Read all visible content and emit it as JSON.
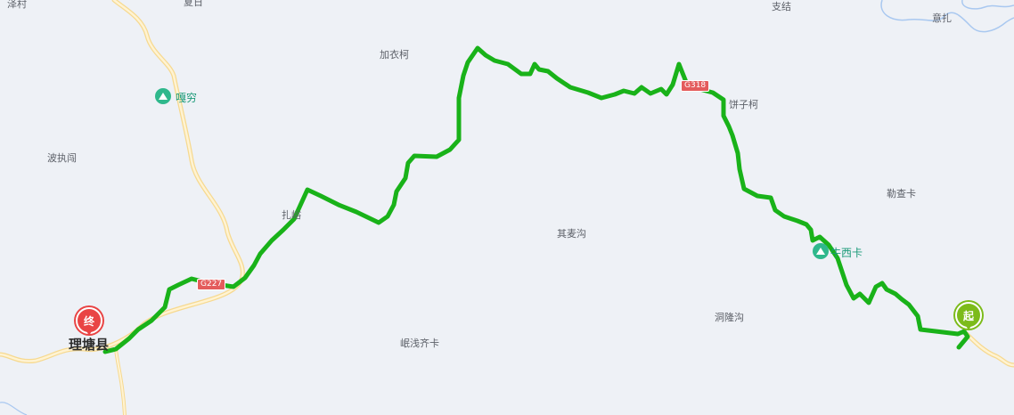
{
  "map": {
    "route_color": "#19b219",
    "labels": {
      "xiazecun": "泽村",
      "top_cut": "夏日",
      "jiayike": "加衣柯",
      "zhijie": "支结",
      "yizha": "意扎",
      "gaqiong": "嘎穷",
      "bozhichuang": "波执闯",
      "zhayi": "扎峪",
      "qimaigou": "其麦沟",
      "bingzike": "饼子柯",
      "lechaka": "勒查卡",
      "niuxika": "牛西卡",
      "donglonggou": "洞隆沟",
      "minqianqika": "岷浅齐卡",
      "litang": "理塘县"
    },
    "roads": {
      "g227": "G227",
      "g318": "G318"
    },
    "markers": {
      "start": "起",
      "end": "终"
    },
    "icons": {
      "poi": "mountain-poi-icon"
    }
  }
}
